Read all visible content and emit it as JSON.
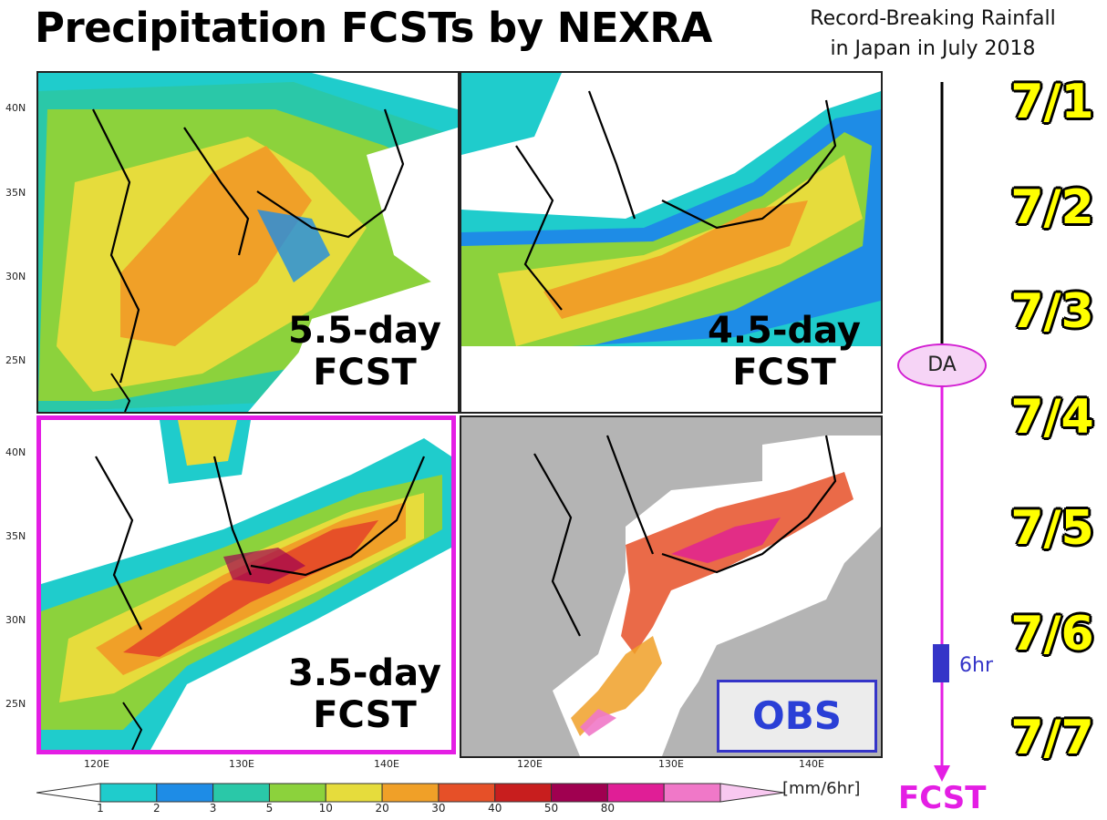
{
  "header": {
    "title": "Precipitation FCSTs by NEXRA",
    "subtitle_lines": [
      "Record-Breaking Rainfall",
      "in Japan in July 2018"
    ]
  },
  "panels": [
    {
      "id": "p55",
      "label_lines": [
        "5.5-day",
        "FCST"
      ],
      "highlighted": false
    },
    {
      "id": "p45",
      "label_lines": [
        "4.5-day",
        "FCST"
      ],
      "highlighted": false
    },
    {
      "id": "p35",
      "label_lines": [
        "3.5-day",
        "FCST"
      ],
      "highlighted": true,
      "highlight_color": "#e41ee4"
    },
    {
      "id": "pobs",
      "label": "OBS",
      "label_color": "#2a3fd6"
    }
  ],
  "axes": {
    "lat_labels": [
      "40N",
      "35N",
      "30N",
      "25N"
    ],
    "lon_labels": [
      "120E",
      "130E",
      "140E"
    ]
  },
  "timeline": {
    "dates": [
      "7/1",
      "7/2",
      "7/3",
      "7/4",
      "7/5",
      "7/6",
      "7/7"
    ],
    "da_label": "DA",
    "window_label": "6hr",
    "fcst_label": "FCST",
    "colors": {
      "analysis": "#000000",
      "forecast": "#e41ee4",
      "window": "#3535c8"
    }
  },
  "colorbar": {
    "unit": "[mm/6hr]",
    "ticks": [
      "1",
      "2",
      "3",
      "5",
      "10",
      "20",
      "30",
      "40",
      "50",
      "80"
    ],
    "colors": [
      "#ffffff",
      "#1fcccc",
      "#1e8ce6",
      "#2ac8a8",
      "#8cd23c",
      "#e6dc3c",
      "#f0a028",
      "#e65028",
      "#c81e1e",
      "#a00050",
      "#e01e96",
      "#f078c8",
      "#f8c8f0"
    ]
  }
}
